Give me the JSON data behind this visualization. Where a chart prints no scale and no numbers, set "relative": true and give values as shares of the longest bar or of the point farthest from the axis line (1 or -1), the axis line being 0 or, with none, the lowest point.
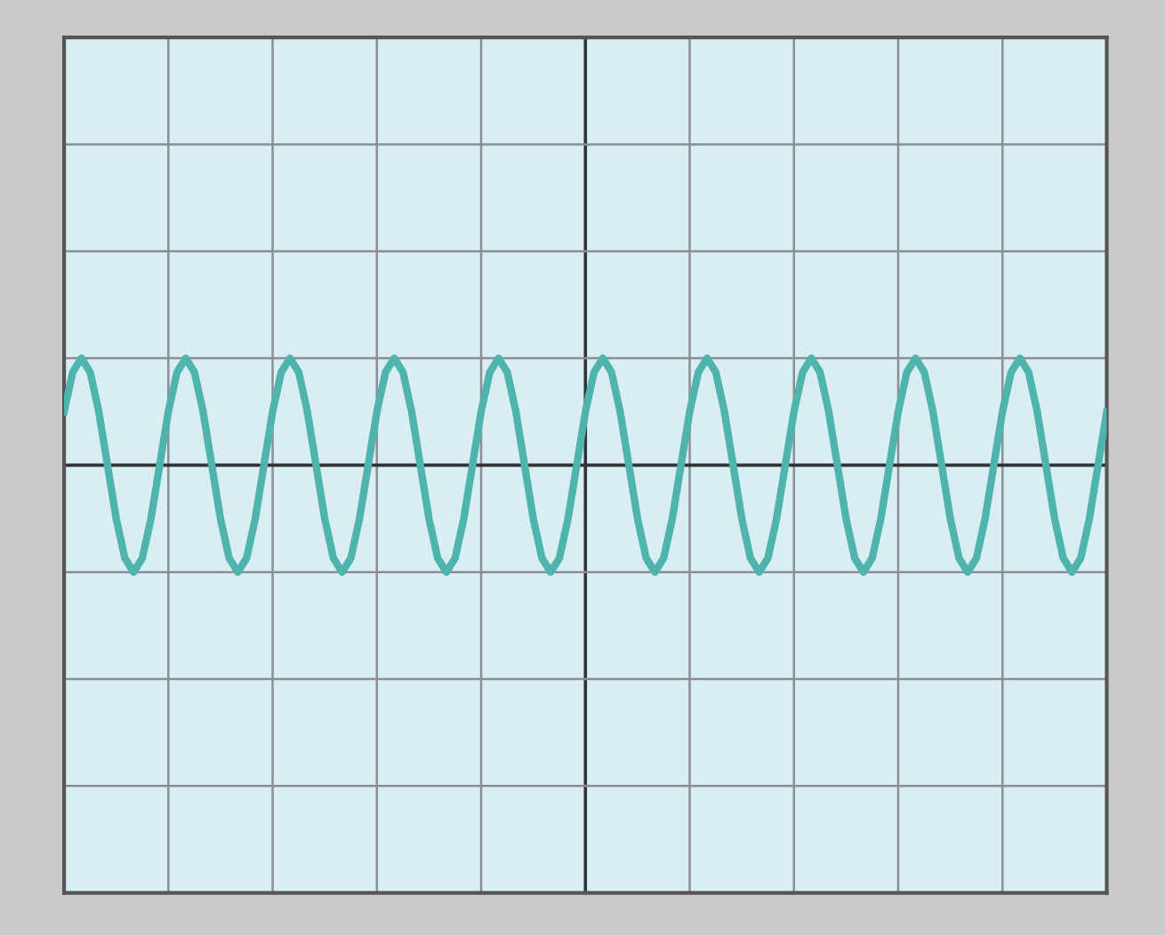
{
  "chart_data": {
    "type": "line",
    "relative": true,
    "grid": true,
    "color": "#4fb3ae",
    "categories": [
      null,
      null,
      null,
      null,
      null,
      null,
      null,
      null,
      null,
      null,
      null,
      null,
      null,
      null,
      null,
      null,
      null,
      null,
      null,
      null,
      null,
      null,
      null,
      null,
      null,
      null,
      null,
      null,
      null,
      null,
      null,
      null,
      null,
      null,
      null,
      null,
      null,
      null,
      null,
      null,
      null,
      null,
      null,
      null,
      null,
      null,
      null,
      null,
      null,
      null,
      null,
      null,
      null,
      null,
      null,
      null,
      null,
      null,
      null,
      null,
      null,
      null,
      null,
      null,
      null,
      null,
      null,
      null,
      null,
      null,
      null,
      null,
      null,
      null,
      null,
      null,
      null,
      null,
      null,
      null,
      null,
      null,
      null,
      null,
      null,
      null,
      null,
      null,
      null,
      null,
      null,
      null,
      null,
      null,
      null,
      null,
      null,
      null,
      null,
      null,
      null,
      null,
      null,
      null,
      null,
      null,
      null,
      null,
      null,
      null,
      null,
      null,
      null,
      null,
      null,
      null,
      null,
      null,
      null,
      null,
      null
    ],
    "values": [
      0.5,
      0.87,
      1,
      0.87,
      0.5,
      0,
      -0.5,
      -0.87,
      -1,
      -0.87,
      -0.5,
      0,
      0.5,
      0.87,
      1,
      0.87,
      0.5,
      0,
      -0.5,
      -0.87,
      -1,
      -0.87,
      -0.5,
      0,
      0.5,
      0.87,
      1,
      0.87,
      0.5,
      0,
      -0.5,
      -0.87,
      -1,
      -0.87,
      -0.5,
      0,
      0.5,
      0.87,
      1,
      0.87,
      0.5,
      0,
      -0.5,
      -0.87,
      -1,
      -0.87,
      -0.5,
      0,
      0.5,
      0.87,
      1,
      0.87,
      0.5,
      0,
      -0.5,
      -0.87,
      -1,
      -0.87,
      -0.5,
      0,
      0.5,
      0.87,
      1,
      0.87,
      0.5,
      0,
      -0.5,
      -0.87,
      -1,
      -0.87,
      -0.5,
      0,
      0.5,
      0.87,
      1,
      0.87,
      0.5,
      0,
      -0.5,
      -0.87,
      -1,
      -0.87,
      -0.5,
      0,
      0.5,
      0.87,
      1,
      0.87,
      0.5,
      0,
      -0.5,
      -0.87,
      -1,
      -0.87,
      -0.5,
      0,
      0.5,
      0.87,
      1,
      0.87,
      0.5,
      0,
      -0.5,
      -0.87,
      -1,
      -0.87,
      -0.5,
      0,
      0.5,
      0.87,
      1,
      0.87,
      0.5,
      0,
      -0.5,
      -0.87,
      -1,
      -0.87,
      -0.5,
      0,
      0.5
    ]
  }
}
